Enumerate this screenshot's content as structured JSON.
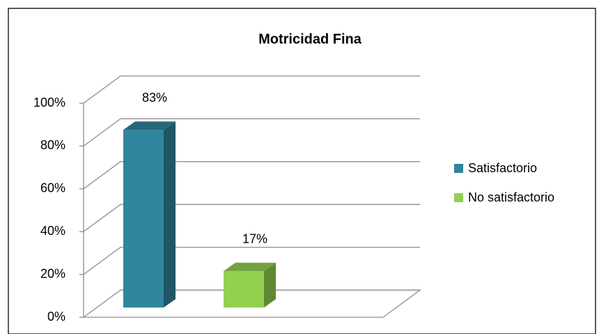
{
  "chart_data": {
    "type": "bar3d",
    "title": "Motricidad Fina",
    "series": [
      {
        "name": "Satisfactorio",
        "color": "#31859c",
        "values": [
          83
        ],
        "value_labels": [
          "83%"
        ]
      },
      {
        "name": "No satisfactorio",
        "color": "#92d050",
        "values": [
          17
        ],
        "value_labels": [
          "17%"
        ]
      }
    ],
    "ylim": [
      0,
      100
    ],
    "yticks": [
      {
        "value": 0,
        "label": "0%"
      },
      {
        "value": 20,
        "label": "20%"
      },
      {
        "value": 40,
        "label": "40%"
      },
      {
        "value": 60,
        "label": "60%"
      },
      {
        "value": 80,
        "label": "80%"
      },
      {
        "value": 100,
        "label": "100%"
      }
    ],
    "grid": true,
    "legend": "right"
  }
}
